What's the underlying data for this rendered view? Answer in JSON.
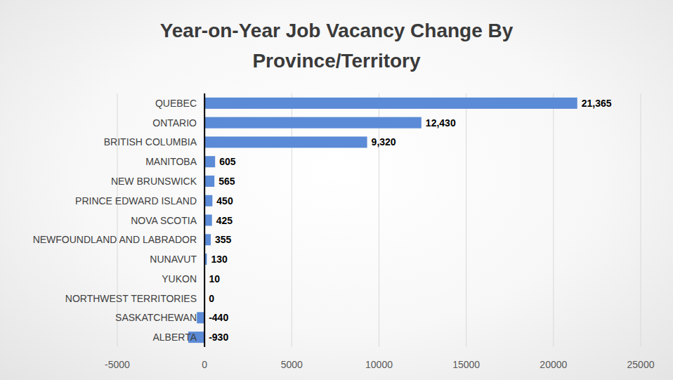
{
  "chart_data": {
    "type": "bar",
    "title": "Year-on-Year Job Vacancy Change By Province/Territory",
    "orientation": "horizontal",
    "categories": [
      "QUEBEC",
      "ONTARIO",
      "BRITISH COLUMBIA",
      "MANITOBA",
      "NEW BRUNSWICK",
      "PRINCE EDWARD ISLAND",
      "NOVA SCOTIA",
      "NEWFOUNDLAND AND LABRADOR",
      "NUNAVUT",
      "YUKON",
      "NORTHWEST TERRITORIES",
      "SASKATCHEWAN",
      "ALBERTA"
    ],
    "values": [
      21365,
      12430,
      9320,
      605,
      565,
      450,
      425,
      355,
      130,
      10,
      0,
      -440,
      -930
    ],
    "value_labels": [
      "21,365",
      "12,430",
      "9,320",
      "605",
      "565",
      "450",
      "425",
      "355",
      "130",
      "10",
      "0",
      "-440",
      "-930"
    ],
    "color": "#5b8ad6",
    "xlim": [
      -5000,
      25000
    ],
    "xticks": [
      -5000,
      0,
      5000,
      10000,
      15000,
      20000,
      25000
    ],
    "grid": true,
    "data_labels": true
  }
}
